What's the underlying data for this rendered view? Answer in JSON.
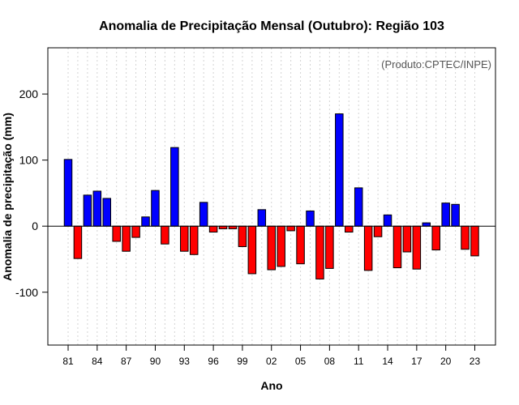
{
  "chart_data": {
    "type": "bar",
    "title": "Anomalia de Precipitação Mensal (Outubro): Região 103",
    "xlabel": "Ano",
    "ylabel": "Anomalia de precipitação (mm)",
    "annotation": "(Produto:CPTEC/INPE)",
    "ylim": [
      -180,
      270
    ],
    "yticks": [
      -100,
      0,
      100,
      200
    ],
    "x_tick_labels": [
      "81",
      "84",
      "87",
      "90",
      "93",
      "96",
      "99",
      "02",
      "05",
      "08",
      "11",
      "14",
      "17",
      "20",
      "23"
    ],
    "categories": [
      "1981",
      "1982",
      "1983",
      "1984",
      "1985",
      "1986",
      "1987",
      "1988",
      "1989",
      "1990",
      "1991",
      "1992",
      "1993",
      "1994",
      "1995",
      "1996",
      "1997",
      "1998",
      "1999",
      "2000",
      "2001",
      "2002",
      "2003",
      "2004",
      "2005",
      "2006",
      "2007",
      "2008",
      "2009",
      "2010",
      "2011",
      "2012",
      "2013",
      "2014",
      "2015",
      "2016",
      "2017",
      "2018",
      "2019",
      "2020",
      "2021",
      "2022",
      "2023"
    ],
    "values": [
      101,
      -49,
      47,
      53,
      42,
      -23,
      -38,
      -17,
      14,
      54,
      -27,
      119,
      -38,
      -43,
      36,
      -9,
      -4,
      -4,
      -31,
      -72,
      25,
      -66,
      -61,
      -7,
      -57,
      23,
      -80,
      -64,
      170,
      -9,
      58,
      -67,
      -16,
      17,
      -63,
      -39,
      -65,
      5,
      -36,
      35,
      33,
      -35,
      -45
    ],
    "colors": {
      "positive": "#0000ff",
      "negative": "#ff0000",
      "zero_line": "#000000",
      "grid": "#d3d3d3"
    }
  }
}
